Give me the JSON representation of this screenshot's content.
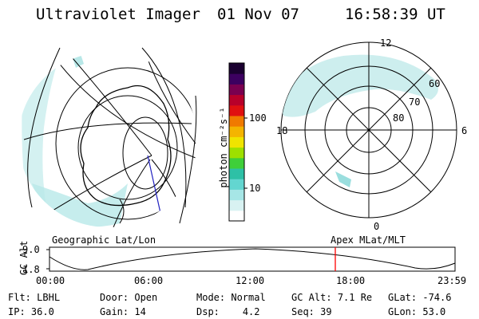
{
  "header": {
    "title": "Ultraviolet Imager",
    "date": "01 Nov 07",
    "time": "16:58:39 UT"
  },
  "colorbar": {
    "unit_label": "photon cm⁻²s⁻¹",
    "tick_labels": [
      "100",
      "10"
    ]
  },
  "polar_plot": {
    "mlt_labels": {
      "top": "12",
      "left": "18",
      "right": "6",
      "bottom": "0"
    },
    "lat_labels": [
      "60",
      "70",
      "80"
    ]
  },
  "map_labels": {
    "left": "Geographic Lat/Lon",
    "right": "Apex MLat/MLT"
  },
  "altitude_plot": {
    "ylabel": "GC Alt",
    "y_ticks": [
      "9.0",
      "1.8"
    ],
    "x_ticks": [
      "00:00",
      "06:00",
      "12:00",
      "18:00",
      "23:59"
    ]
  },
  "info": {
    "row1": [
      {
        "label": "Flt:",
        "value": "LBHL"
      },
      {
        "label": "Door:",
        "value": "Open"
      },
      {
        "label": "Mode:",
        "value": "Normal"
      },
      {
        "label": "GC Alt:",
        "value": "7.1 Re"
      },
      {
        "label": "GLat:",
        "value": "-74.6"
      }
    ],
    "row2": [
      {
        "label": "IP:",
        "value": "36.0"
      },
      {
        "label": "Gain:",
        "value": "14"
      },
      {
        "label": "Dsp:",
        "value": "4.2"
      },
      {
        "label": "Seq:",
        "value": "39"
      },
      {
        "label": "GLon:",
        "value": "53.0"
      }
    ]
  },
  "colors": {
    "colorbar": [
      "#ffffff",
      "#d8f2f2",
      "#a6e6e6",
      "#63d6d0",
      "#2ec0a6",
      "#3fcf3a",
      "#9ee000",
      "#f0e400",
      "#f4b400",
      "#f07a00",
      "#e01010",
      "#b8002a",
      "#7a0050",
      "#3c0060",
      "#1a0030"
    ],
    "marker": "#ff0000",
    "aurora": "#a8e0e0"
  }
}
